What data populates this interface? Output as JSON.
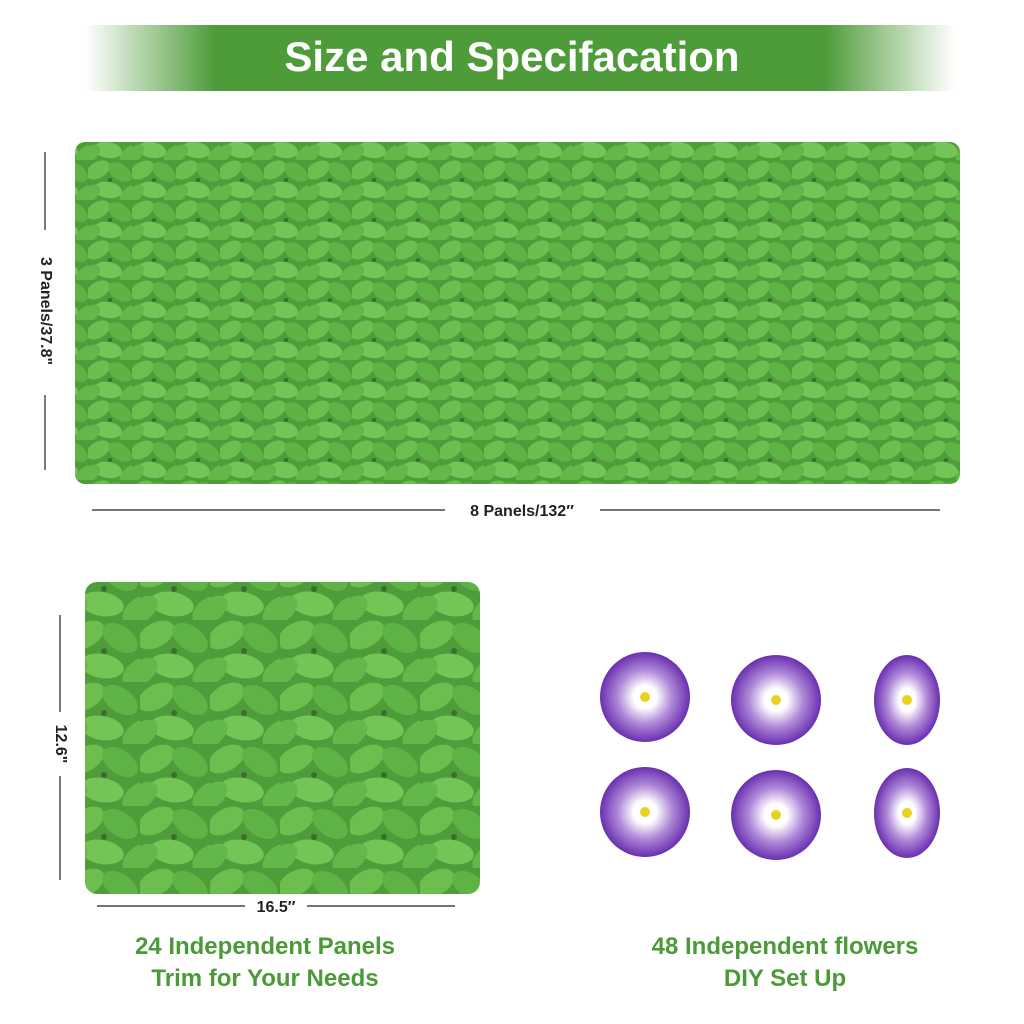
{
  "header": {
    "title": "Size and Specifacation"
  },
  "main_panel": {
    "height_label": "3 Panels/37.8\"",
    "width_label": "8 Panels/132″"
  },
  "single_panel": {
    "height_label": "12.6\"",
    "width_label": "16.5′′",
    "caption": [
      "24 Independent Panels",
      "Trim for Your Needs"
    ]
  },
  "flowers": {
    "caption": [
      "48 Independent flowers",
      "DIY Set Up"
    ]
  }
}
